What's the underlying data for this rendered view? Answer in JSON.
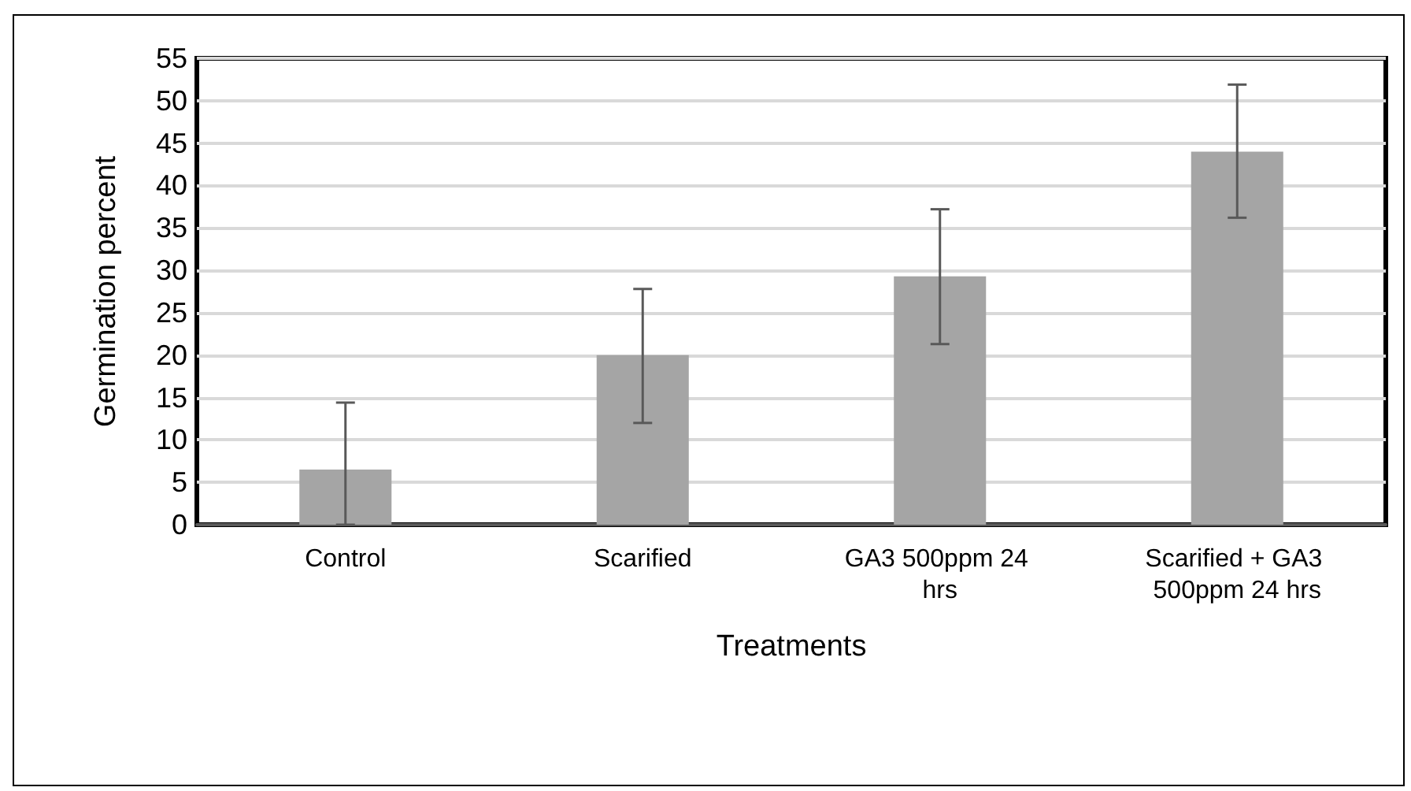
{
  "chart_data": {
    "type": "bar",
    "xlabel": "Treatments",
    "ylabel": "Germination percent",
    "categories": [
      "Control",
      "Scarified",
      "GA3 500ppm 24 hrs",
      "Scarified + GA3 500ppm 24 hrs"
    ],
    "values": [
      6.5,
      20,
      29.3,
      44
    ],
    "errors": [
      [
        0,
        14.4
      ],
      [
        12,
        27.8
      ],
      [
        21.3,
        37.2
      ],
      [
        36.2,
        51.9
      ]
    ],
    "color": "#a5a5a5",
    "ylim": [
      0,
      55
    ],
    "yticks": [
      0,
      5,
      10,
      15,
      20,
      25,
      30,
      35,
      40,
      45,
      50,
      55
    ],
    "grid": "y"
  }
}
